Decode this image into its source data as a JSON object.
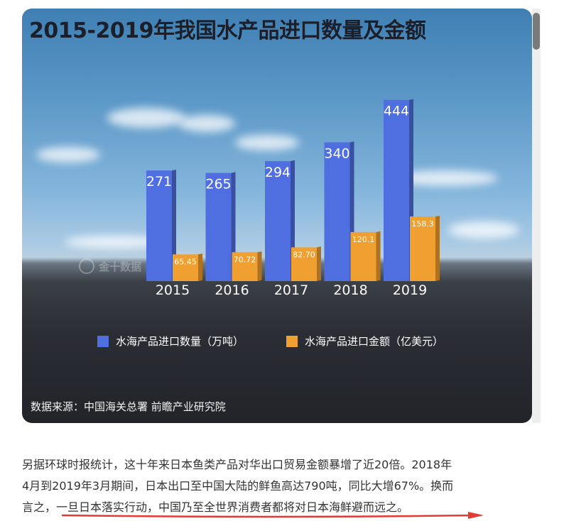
{
  "chart_data": {
    "type": "bar",
    "title": "2015-2019年我国水产品进口数量及金额",
    "categories": [
      "2015",
      "2016",
      "2017",
      "2018",
      "2019"
    ],
    "series": [
      {
        "name": "水海产品进口数量（万吨）",
        "values": [
          271,
          265,
          294,
          340,
          444
        ],
        "color": "#4f6fe0",
        "labels": [
          "271",
          "265",
          "294",
          "340",
          "444"
        ]
      },
      {
        "name": "水海产品进口金额（亿美元）",
        "values": [
          65.45,
          70.72,
          82.7,
          120.1,
          158.3
        ],
        "color": "#f0a030",
        "labels": [
          "65.45",
          "70.72",
          "82.70",
          "120.1",
          "158.3"
        ]
      }
    ],
    "legend_position": "bottom",
    "grid": false,
    "source": "数据来源：中国海关总署 前瞻产业研究院",
    "watermark": "金十数据"
  },
  "article": {
    "line1": "另据环球时报统计，这十年来日本鱼类产品对华出口贸易金额暴增了近20倍。2018年",
    "line2": "4月到2019年3月期间，日本出口至中国大陆的鲜鱼高达790吨，同比大增67%。换而",
    "line3_plain": "言之，",
    "line3_highlight": "一旦日本落实行动，中国乃至全世界消费者都将对日本海鲜避而远之。",
    "underline_color": "#e23b33"
  }
}
